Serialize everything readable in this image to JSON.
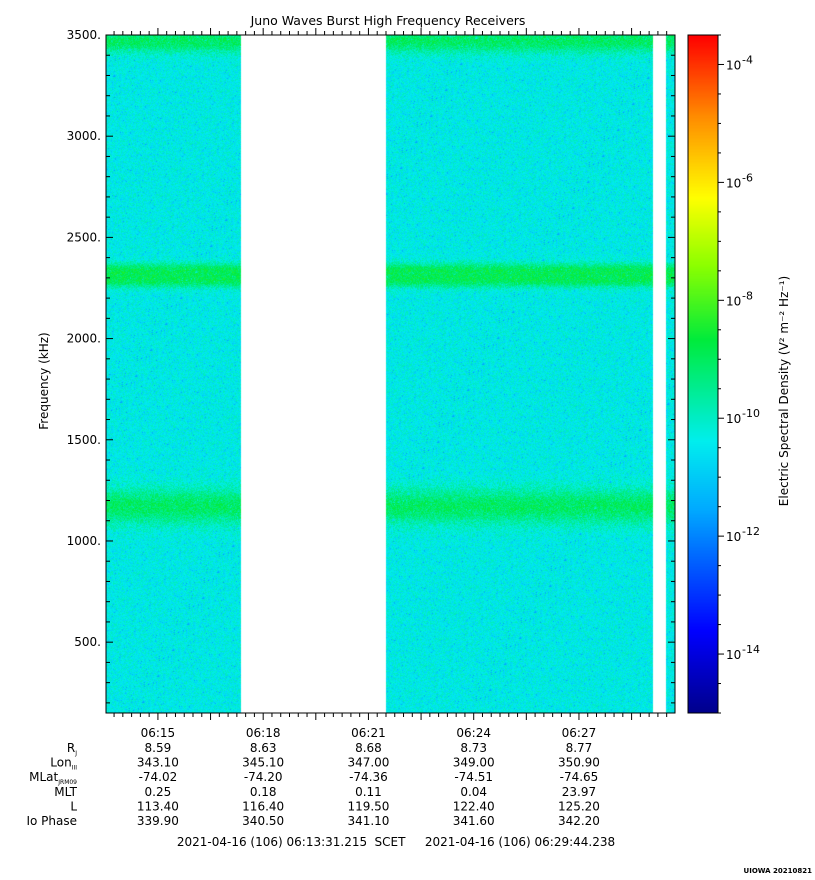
{
  "chart_data": {
    "type": "heatmap",
    "title": "Juno Waves Burst High Frequency Receivers",
    "ylabel": "Frequency (kHz)",
    "ylim": [
      150,
      3500
    ],
    "y_ticks": [
      "3500.",
      "3000.",
      "2500.",
      "2000.",
      "1500.",
      "1000.",
      "500."
    ],
    "y_tick_values": [
      3500,
      3000,
      2500,
      2000,
      1500,
      1000,
      500
    ],
    "x_unit": "minutes after 06:13:31.215",
    "xlim": [
      0,
      16.217
    ],
    "x_ticks": [
      "06:15",
      "06:18",
      "06:21",
      "06:24",
      "06:27"
    ],
    "x_tick_values": [
      1.4798,
      4.4798,
      7.4798,
      10.4798,
      13.4798
    ],
    "data_segments": [
      [
        0,
        3.83
      ],
      [
        7.98,
        15.58
      ],
      [
        15.94,
        19.9
      ]
    ],
    "intensity_bands_khz": [
      {
        "center": 3470,
        "width": 60,
        "level": "enhanced"
      },
      {
        "center": 2340,
        "width": 35,
        "level": "enhanced"
      },
      {
        "center": 2285,
        "width": 35,
        "level": "enhanced"
      },
      {
        "center": 1170,
        "width": 90,
        "level": "enhanced"
      }
    ],
    "colorbar": {
      "label": "Electric Spectral Density (V² m⁻² Hz⁻¹)",
      "scale": "log",
      "range_exponent": [
        -15.0,
        -3.5
      ],
      "ticks": [
        "-4",
        "-6",
        "-8",
        "-10",
        "-12",
        "-14"
      ],
      "tick_values": [
        -4,
        -6,
        -8,
        -10,
        -12,
        -14
      ],
      "base_label": "10"
    },
    "ephemeris": {
      "rows": [
        {
          "label": "R",
          "sub": "J",
          "values": [
            "8.59",
            "8.63",
            "8.68",
            "8.73",
            "8.77"
          ]
        },
        {
          "label": "Lon",
          "sub": "III",
          "values": [
            "343.10",
            "345.10",
            "347.00",
            "349.00",
            "350.90"
          ]
        },
        {
          "label": "MLat",
          "sub": "JRM09",
          "values": [
            "-74.02",
            "-74.20",
            "-74.36",
            "-74.51",
            "-74.65"
          ]
        },
        {
          "label": "MLT",
          "sub": "",
          "values": [
            "0.25",
            "0.18",
            "0.11",
            "0.04",
            "23.97"
          ]
        },
        {
          "label": "L",
          "sub": "",
          "values": [
            "113.40",
            "116.40",
            "119.50",
            "122.40",
            "125.20"
          ]
        },
        {
          "label": "Io Phase",
          "sub": "",
          "values": [
            "339.90",
            "340.50",
            "341.10",
            "341.60",
            "342.20"
          ]
        }
      ]
    },
    "time_range": {
      "start": "2021-04-16 (106) 06:13:31.215",
      "label": "SCET",
      "end": "2021-04-16 (106) 06:29:44.238"
    },
    "footer": "UIOWA 20210821"
  }
}
